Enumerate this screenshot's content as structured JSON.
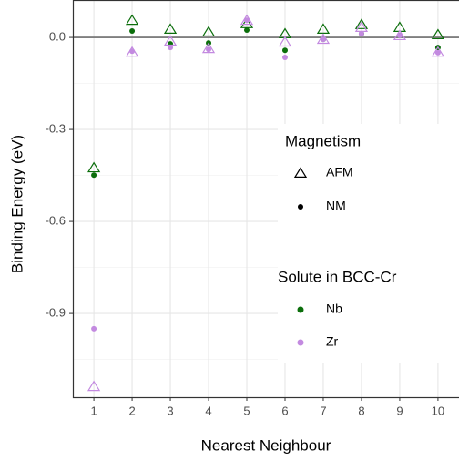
{
  "chart_data": {
    "type": "scatter",
    "x_label": "Nearest Neighbour",
    "y_label": "Binding Energy (eV)",
    "x": [
      1,
      2,
      3,
      4,
      5,
      6,
      7,
      8,
      9,
      10
    ],
    "xlim": [
      0.45,
      10.55
    ],
    "xticks": [
      1,
      2,
      3,
      4,
      5,
      6,
      7,
      8,
      9,
      10
    ],
    "ylim": [
      -1.173,
      0.122
    ],
    "yticks": [
      {
        "value": -0.9,
        "label": "-0.9"
      },
      {
        "value": -0.6,
        "label": "-0.6"
      },
      {
        "value": -0.3,
        "label": "-0.3"
      },
      {
        "value": 0,
        "label": "0.0"
      }
    ],
    "reference_line": 0,
    "grid": true,
    "legend": [
      {
        "title": "Magnetism",
        "items": [
          {
            "label": "AFM",
            "shape": "triangle-open"
          },
          {
            "label": "NM",
            "shape": "dot"
          }
        ]
      },
      {
        "title": "Solute in BCC-Cr",
        "items": [
          {
            "label": "Nb",
            "color": "#0b6e0b"
          },
          {
            "label": "Zr",
            "color": "#c38ae0"
          }
        ]
      }
    ],
    "series": [
      {
        "solute": "Nb",
        "magnetism": "AFM",
        "values": [
          -0.425,
          0.056,
          0.027,
          0.018,
          0.045,
          0.012,
          0.027,
          0.042,
          0.033,
          0.009
        ]
      },
      {
        "solute": "Nb",
        "magnetism": "NM",
        "values": [
          -0.449,
          0.021,
          -0.021,
          -0.018,
          0.024,
          -0.042,
          -0.006,
          0.012,
          0.006,
          -0.033
        ]
      },
      {
        "solute": "Zr",
        "magnetism": "AFM",
        "values": [
          -1.138,
          -0.048,
          -0.012,
          -0.036,
          0.056,
          -0.015,
          -0.006,
          0.033,
          0.006,
          -0.048
        ]
      },
      {
        "solute": "Zr",
        "magnetism": "NM",
        "values": [
          -0.95,
          -0.045,
          -0.033,
          -0.039,
          0.056,
          -0.065,
          -0.006,
          0.012,
          0.006,
          -0.05
        ]
      }
    ]
  }
}
